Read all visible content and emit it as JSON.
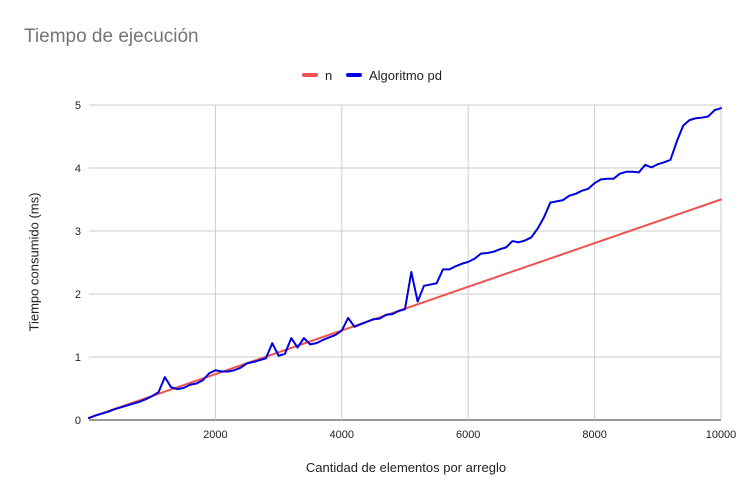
{
  "chart_data": {
    "type": "line",
    "title": "Tiempo de ejecución",
    "xlabel": "Cantidad de elementos por arreglo",
    "ylabel": "Tiempo consumido (ms)",
    "xlim": [
      0,
      10000
    ],
    "ylim": [
      0,
      5
    ],
    "x_ticks": [
      2000,
      4000,
      6000,
      8000,
      10000
    ],
    "x_tick_labels": [
      "2000",
      "4000",
      "6000",
      "8000",
      "10000"
    ],
    "y_ticks": [
      0,
      1,
      2,
      3,
      4,
      5
    ],
    "y_tick_labels": [
      "0",
      "1",
      "2",
      "3",
      "4",
      "5"
    ],
    "grid": true,
    "legend_position": "top",
    "series": [
      {
        "name": "n",
        "color": "#ef5350",
        "x": [
          0,
          10000
        ],
        "y": [
          0.035,
          3.5
        ]
      },
      {
        "name": "Algoritmo pd",
        "color": "#0000e0",
        "x": [
          0,
          100,
          200,
          300,
          400,
          500,
          600,
          700,
          800,
          900,
          1000,
          1100,
          1200,
          1300,
          1400,
          1500,
          1600,
          1700,
          1800,
          1900,
          2000,
          2100,
          2200,
          2300,
          2400,
          2500,
          2600,
          2700,
          2800,
          2900,
          3000,
          3100,
          3200,
          3300,
          3400,
          3500,
          3600,
          3700,
          3800,
          3900,
          4000,
          4100,
          4200,
          4300,
          4400,
          4500,
          4600,
          4700,
          4800,
          4900,
          5000,
          5100,
          5200,
          5300,
          5400,
          5500,
          5600,
          5700,
          5800,
          5900,
          6000,
          6100,
          6200,
          6300,
          6400,
          6500,
          6600,
          6700,
          6800,
          6900,
          7000,
          7100,
          7200,
          7300,
          7400,
          7500,
          7600,
          7700,
          7800,
          7900,
          8000,
          8100,
          8200,
          8300,
          8400,
          8500,
          8600,
          8700,
          8800,
          8900,
          9000,
          9100,
          9200,
          9300,
          9400,
          9500,
          9600,
          9700,
          9800,
          9900,
          10000
        ],
        "y": [
          0.03,
          0.07,
          0.1,
          0.13,
          0.17,
          0.2,
          0.23,
          0.26,
          0.29,
          0.33,
          0.38,
          0.44,
          0.68,
          0.52,
          0.49,
          0.51,
          0.56,
          0.58,
          0.63,
          0.74,
          0.79,
          0.77,
          0.77,
          0.79,
          0.83,
          0.9,
          0.92,
          0.95,
          0.98,
          1.22,
          1.02,
          1.05,
          1.3,
          1.15,
          1.3,
          1.2,
          1.22,
          1.27,
          1.31,
          1.35,
          1.42,
          1.62,
          1.48,
          1.52,
          1.56,
          1.6,
          1.61,
          1.67,
          1.68,
          1.73,
          1.76,
          2.35,
          1.88,
          2.13,
          2.15,
          2.17,
          2.39,
          2.39,
          2.44,
          2.48,
          2.51,
          2.56,
          2.64,
          2.65,
          2.67,
          2.71,
          2.74,
          2.84,
          2.82,
          2.85,
          2.9,
          3.04,
          3.22,
          3.45,
          3.47,
          3.49,
          3.56,
          3.59,
          3.64,
          3.67,
          3.76,
          3.82,
          3.83,
          3.83,
          3.91,
          3.94,
          3.94,
          3.93,
          4.05,
          4.01,
          4.06,
          4.09,
          4.13,
          4.42,
          4.67,
          4.76,
          4.79,
          4.8,
          4.82,
          4.92,
          4.95
        ]
      }
    ]
  }
}
